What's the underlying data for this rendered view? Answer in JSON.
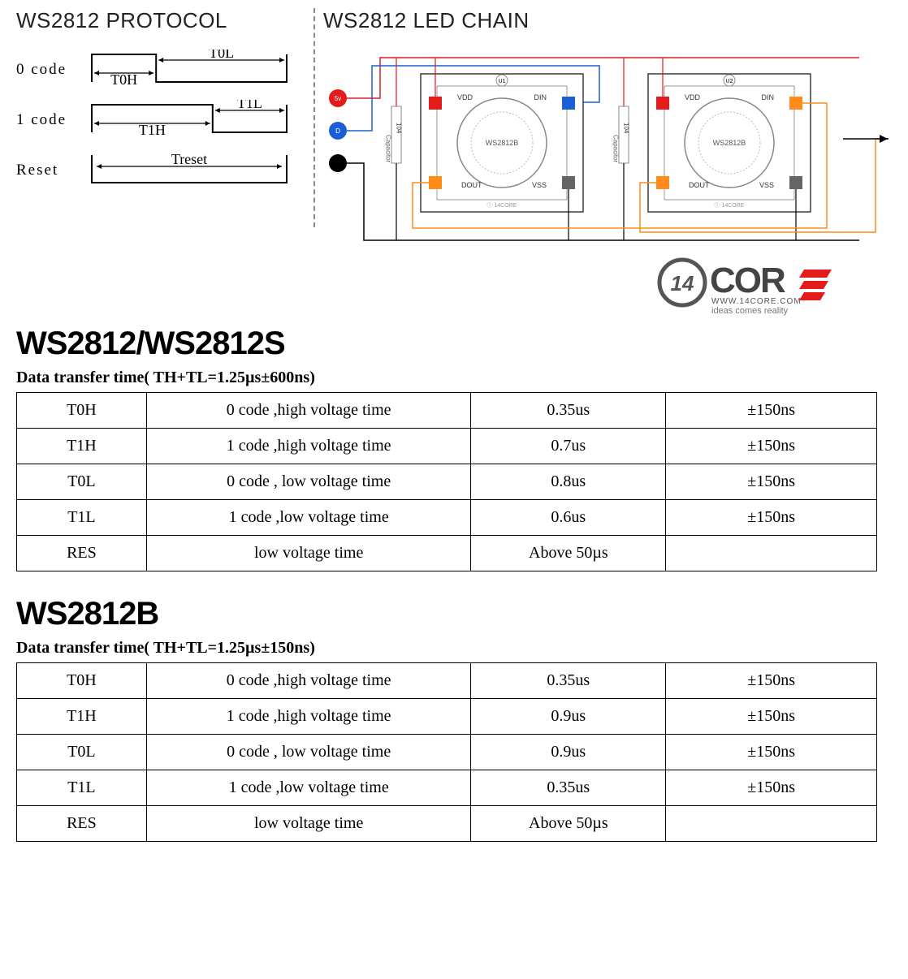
{
  "header_left": "WS2812 PROTOCOL",
  "header_right": "WS2812 LED CHAIN",
  "timing": {
    "rows": [
      {
        "label": "0 code",
        "segments": [
          {
            "label": "T0H",
            "frac": 0.33
          },
          {
            "label": "T0L",
            "frac": 0.67
          }
        ]
      },
      {
        "label": "1 code",
        "segments": [
          {
            "label": "T1H",
            "frac": 0.62
          },
          {
            "label": "T1L",
            "frac": 0.38
          }
        ]
      },
      {
        "label": "Reset",
        "segments": [
          {
            "label": "Treset",
            "frac": 1.0
          }
        ]
      }
    ],
    "line_color": "#000000",
    "font": "Times New Roman",
    "fontsize": 18
  },
  "chain": {
    "inputs": [
      {
        "label": "5v",
        "color": "#e41b1b"
      },
      {
        "label": "D",
        "color": "#1b5fd6"
      },
      {
        "label": "",
        "color": "#000000"
      }
    ],
    "chips": [
      {
        "ref": "U1",
        "name": "WS2812B",
        "pins": {
          "VDD": {
            "color": "#e41b1b"
          },
          "DIN": {
            "color": "#1b5fd6"
          },
          "DOUT": {
            "color": "#ff8c1a"
          },
          "VSS": {
            "color": "#666666"
          }
        },
        "cap_label": "Capacitor",
        "cap_val": "104"
      },
      {
        "ref": "U2",
        "name": "WS2812B",
        "pins": {
          "VDD": {
            "color": "#e41b1b"
          },
          "DIN": {
            "color": "#ff8c1a"
          },
          "DOUT": {
            "color": "#ff8c1a"
          },
          "VSS": {
            "color": "#666666"
          }
        },
        "cap_label": "Capacitor",
        "cap_val": "104"
      }
    ],
    "wire_colors": {
      "vdd": "#e41b1b",
      "gnd": "#000000",
      "din": "#1b5fd6",
      "dout": "#ff8c1a"
    },
    "chip_border": "#3a3a3a",
    "chip_bg": "#ffffff",
    "logo_text": "14CORE"
  },
  "logo": {
    "badge": "14",
    "badge_color": "#555555",
    "name": "COR",
    "name_color": "#444444",
    "accent_color": "#e41b1b",
    "url": "WWW.14CORE.COM",
    "tagline": "ideas comes reality"
  },
  "section1": {
    "title": "WS2812/WS2812S",
    "subtitle": "Data transfer time( TH+TL=1.25µs±600ns)",
    "rows": [
      [
        "T0H",
        "0 code ,high voltage time",
        "0.35us",
        "±150ns"
      ],
      [
        "T1H",
        "1 code ,high voltage time",
        "0.7us",
        "±150ns"
      ],
      [
        "T0L",
        "0 code , low voltage time",
        "0.8us",
        "±150ns"
      ],
      [
        "T1L",
        "1 code ,low voltage time",
        "0.6us",
        "±150ns"
      ],
      [
        "RES",
        "low voltage time",
        "Above 50µs",
        ""
      ]
    ]
  },
  "section2": {
    "title": "WS2812B",
    "subtitle": "Data transfer time( TH+TL=1.25µs±150ns)",
    "rows": [
      [
        "T0H",
        "0 code ,high voltage time",
        "0.35us",
        "±150ns"
      ],
      [
        "T1H",
        "1 code ,high voltage time",
        "0.9us",
        "±150ns"
      ],
      [
        "T0L",
        "0 code , low voltage time",
        "0.9us",
        "±150ns"
      ],
      [
        "T1L",
        "1 code ,low voltage time",
        "0.35us",
        "±150ns"
      ],
      [
        "RES",
        "low voltage time",
        "Above 50µs",
        ""
      ]
    ]
  },
  "colors": {
    "text": "#000000",
    "bg": "#ffffff",
    "border": "#000000"
  }
}
